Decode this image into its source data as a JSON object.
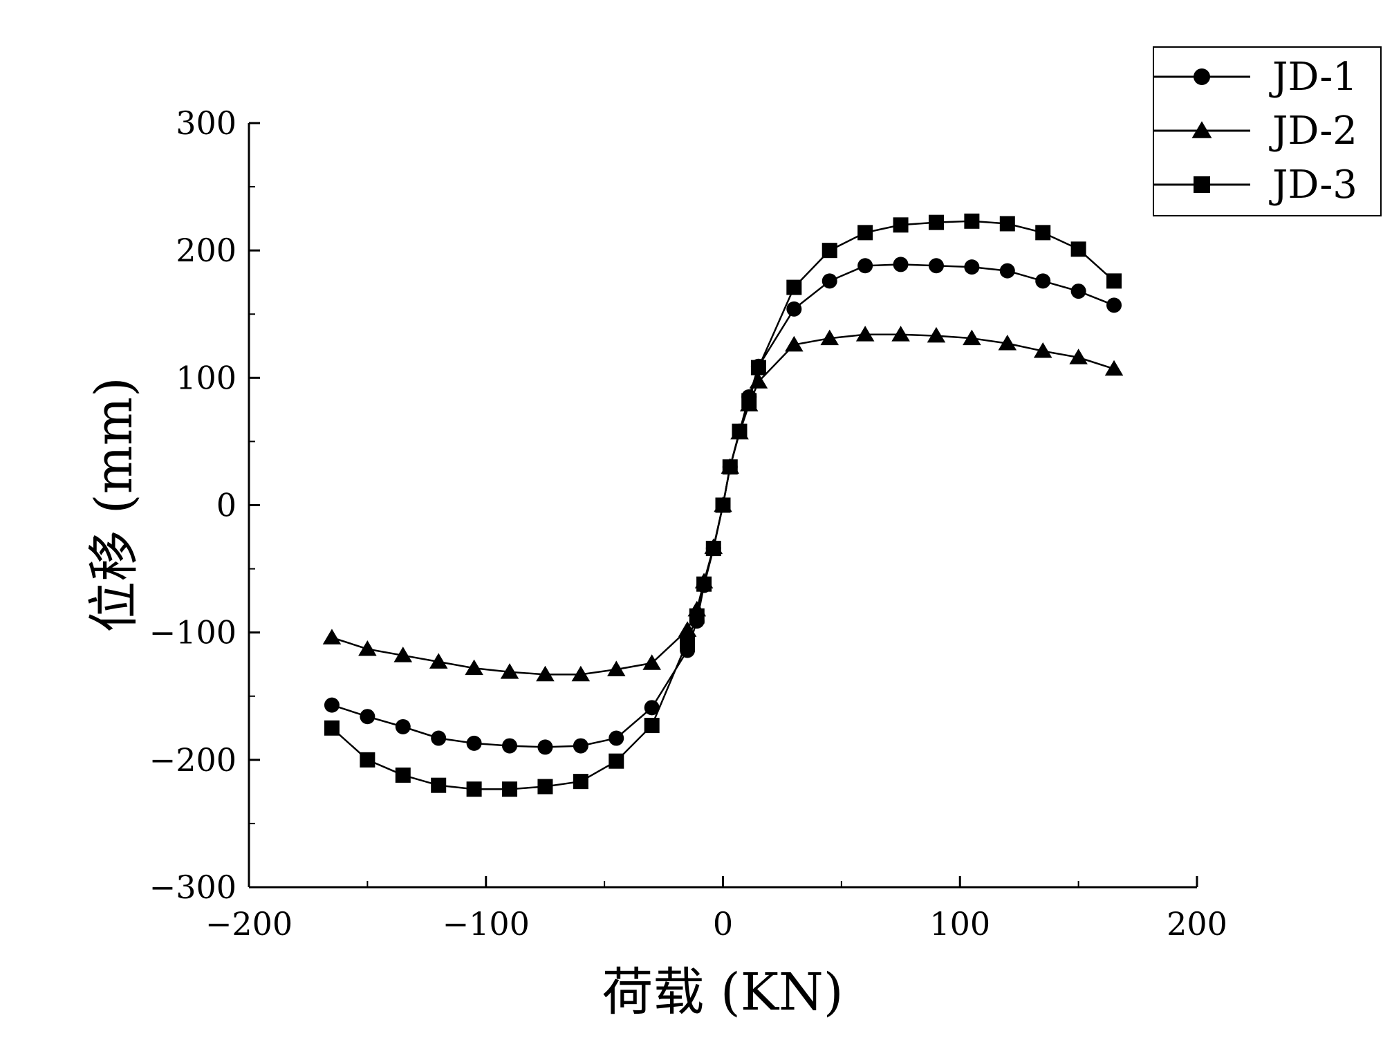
{
  "chart_data": {
    "type": "line",
    "title": "",
    "xlabel": "荷载 (KN)",
    "ylabel": "位移 (mm)",
    "xlim": [
      -200,
      200
    ],
    "ylim": [
      -300,
      300
    ],
    "x_ticks": [
      -200,
      -100,
      0,
      100,
      200
    ],
    "x_tick_labels": [
      "−200",
      "−100",
      "0",
      "100",
      "200"
    ],
    "y_ticks": [
      -300,
      -200,
      -100,
      0,
      100,
      200,
      300
    ],
    "y_tick_labels": [
      "−300",
      "−200",
      "−100",
      "0",
      "100",
      "200",
      "300"
    ],
    "grid": false,
    "legend_position": "top-right",
    "series": [
      {
        "name": "JD-1",
        "marker": "circle",
        "points": [
          [
            -165,
            -157
          ],
          [
            -150,
            -166
          ],
          [
            -135,
            -174
          ],
          [
            -120,
            -183
          ],
          [
            -105,
            -187
          ],
          [
            -90,
            -189
          ],
          [
            -75,
            -190
          ],
          [
            -60,
            -189
          ],
          [
            -45,
            -183
          ],
          [
            -30,
            -159
          ],
          [
            -15,
            -114
          ],
          [
            -11,
            -91
          ],
          [
            -8,
            -63
          ],
          [
            -4,
            -34
          ],
          [
            0,
            0
          ],
          [
            3,
            30
          ],
          [
            7,
            58
          ],
          [
            11,
            85
          ],
          [
            15,
            109
          ],
          [
            30,
            154
          ],
          [
            45,
            176
          ],
          [
            60,
            188
          ],
          [
            75,
            189
          ],
          [
            90,
            188
          ],
          [
            105,
            187
          ],
          [
            120,
            184
          ],
          [
            135,
            176
          ],
          [
            150,
            168
          ],
          [
            165,
            157
          ]
        ]
      },
      {
        "name": "JD-2",
        "marker": "triangle",
        "points": [
          [
            -165,
            -104
          ],
          [
            -150,
            -113
          ],
          [
            -135,
            -118
          ],
          [
            -120,
            -123
          ],
          [
            -105,
            -128
          ],
          [
            -90,
            -131
          ],
          [
            -75,
            -133
          ],
          [
            -60,
            -133
          ],
          [
            -45,
            -129
          ],
          [
            -30,
            -124
          ],
          [
            -15,
            -98
          ],
          [
            -11,
            -82
          ],
          [
            -8,
            -60
          ],
          [
            -4,
            -33
          ],
          [
            0,
            0
          ],
          [
            3,
            30
          ],
          [
            7,
            57
          ],
          [
            11,
            79
          ],
          [
            15,
            97
          ],
          [
            30,
            126
          ],
          [
            45,
            131
          ],
          [
            60,
            134
          ],
          [
            75,
            134
          ],
          [
            90,
            133
          ],
          [
            105,
            131
          ],
          [
            120,
            127
          ],
          [
            135,
            121
          ],
          [
            150,
            116
          ],
          [
            165,
            107
          ]
        ]
      },
      {
        "name": "JD-3",
        "marker": "square",
        "points": [
          [
            -165,
            -175
          ],
          [
            -150,
            -200
          ],
          [
            -135,
            -212
          ],
          [
            -120,
            -220
          ],
          [
            -105,
            -223
          ],
          [
            -90,
            -223
          ],
          [
            -75,
            -221
          ],
          [
            -60,
            -217
          ],
          [
            -45,
            -201
          ],
          [
            -30,
            -173
          ],
          [
            -15,
            -107
          ],
          [
            -11,
            -87
          ],
          [
            -8,
            -62
          ],
          [
            -4,
            -34
          ],
          [
            0,
            0
          ],
          [
            3,
            30
          ],
          [
            7,
            58
          ],
          [
            11,
            82
          ],
          [
            15,
            108
          ],
          [
            30,
            171
          ],
          [
            45,
            200
          ],
          [
            60,
            214
          ],
          [
            75,
            220
          ],
          [
            90,
            222
          ],
          [
            105,
            223
          ],
          [
            120,
            221
          ],
          [
            135,
            214
          ],
          [
            150,
            201
          ],
          [
            165,
            176
          ]
        ]
      }
    ]
  }
}
